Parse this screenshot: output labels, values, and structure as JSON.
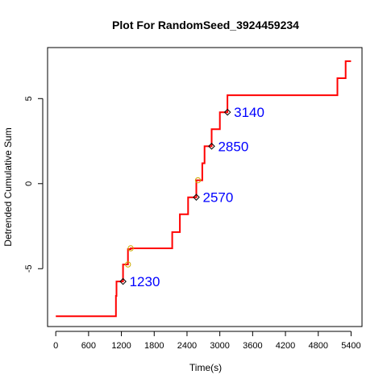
{
  "chart_data": {
    "type": "line",
    "title": "Plot For RandomSeed_3924459234",
    "xlabel": "Time(s)",
    "ylabel": "Detrended Cumulative Sum",
    "xlim": [
      -150,
      5600
    ],
    "ylim": [
      -8.4,
      8.0
    ],
    "x_ticks": [
      0,
      600,
      1200,
      1800,
      2400,
      3000,
      3600,
      4200,
      4800,
      5400
    ],
    "y_ticks": [
      -5,
      0,
      5
    ],
    "grid": false,
    "series": [
      {
        "color": "#ff0000",
        "points": [
          [
            0,
            -7.8
          ],
          [
            1100,
            -7.8
          ],
          [
            1100,
            -6.6
          ],
          [
            1110,
            -6.6
          ],
          [
            1110,
            -5.75
          ],
          [
            1230,
            -5.75
          ],
          [
            1230,
            -4.75
          ],
          [
            1320,
            -4.75
          ],
          [
            1320,
            -3.85
          ],
          [
            1370,
            -3.85
          ],
          [
            1370,
            -3.8
          ],
          [
            2130,
            -3.8
          ],
          [
            2130,
            -2.85
          ],
          [
            2270,
            -2.85
          ],
          [
            2270,
            -1.8
          ],
          [
            2420,
            -1.8
          ],
          [
            2420,
            -0.8
          ],
          [
            2570,
            -0.8
          ],
          [
            2570,
            0.2
          ],
          [
            2680,
            0.2
          ],
          [
            2680,
            1.2
          ],
          [
            2720,
            1.2
          ],
          [
            2720,
            2.2
          ],
          [
            2850,
            2.2
          ],
          [
            2850,
            3.2
          ],
          [
            3000,
            3.2
          ],
          [
            3000,
            4.2
          ],
          [
            3140,
            4.2
          ],
          [
            3140,
            5.2
          ],
          [
            5150,
            5.2
          ],
          [
            5150,
            6.2
          ],
          [
            5300,
            6.2
          ],
          [
            5300,
            7.2
          ],
          [
            5400,
            7.2
          ]
        ]
      }
    ],
    "markers": {
      "diamond": {
        "color": "#000000",
        "points": [
          [
            1230,
            -5.75
          ],
          [
            2570,
            -0.8
          ],
          [
            2850,
            2.2
          ],
          [
            3140,
            4.2
          ]
        ]
      },
      "circle": {
        "color": "#ccaa00",
        "points": [
          [
            1320,
            -4.75
          ],
          [
            1370,
            -3.8
          ],
          [
            2600,
            0.2
          ]
        ]
      }
    },
    "annotations": [
      {
        "text": "1230",
        "x": 1230,
        "y": -5.75,
        "color": "#0000ff"
      },
      {
        "text": "2570",
        "x": 2570,
        "y": -0.8,
        "color": "#0000ff"
      },
      {
        "text": "2850",
        "x": 2850,
        "y": 2.2,
        "color": "#0000ff"
      },
      {
        "text": "3140",
        "x": 3140,
        "y": 4.2,
        "color": "#0000ff"
      }
    ]
  }
}
